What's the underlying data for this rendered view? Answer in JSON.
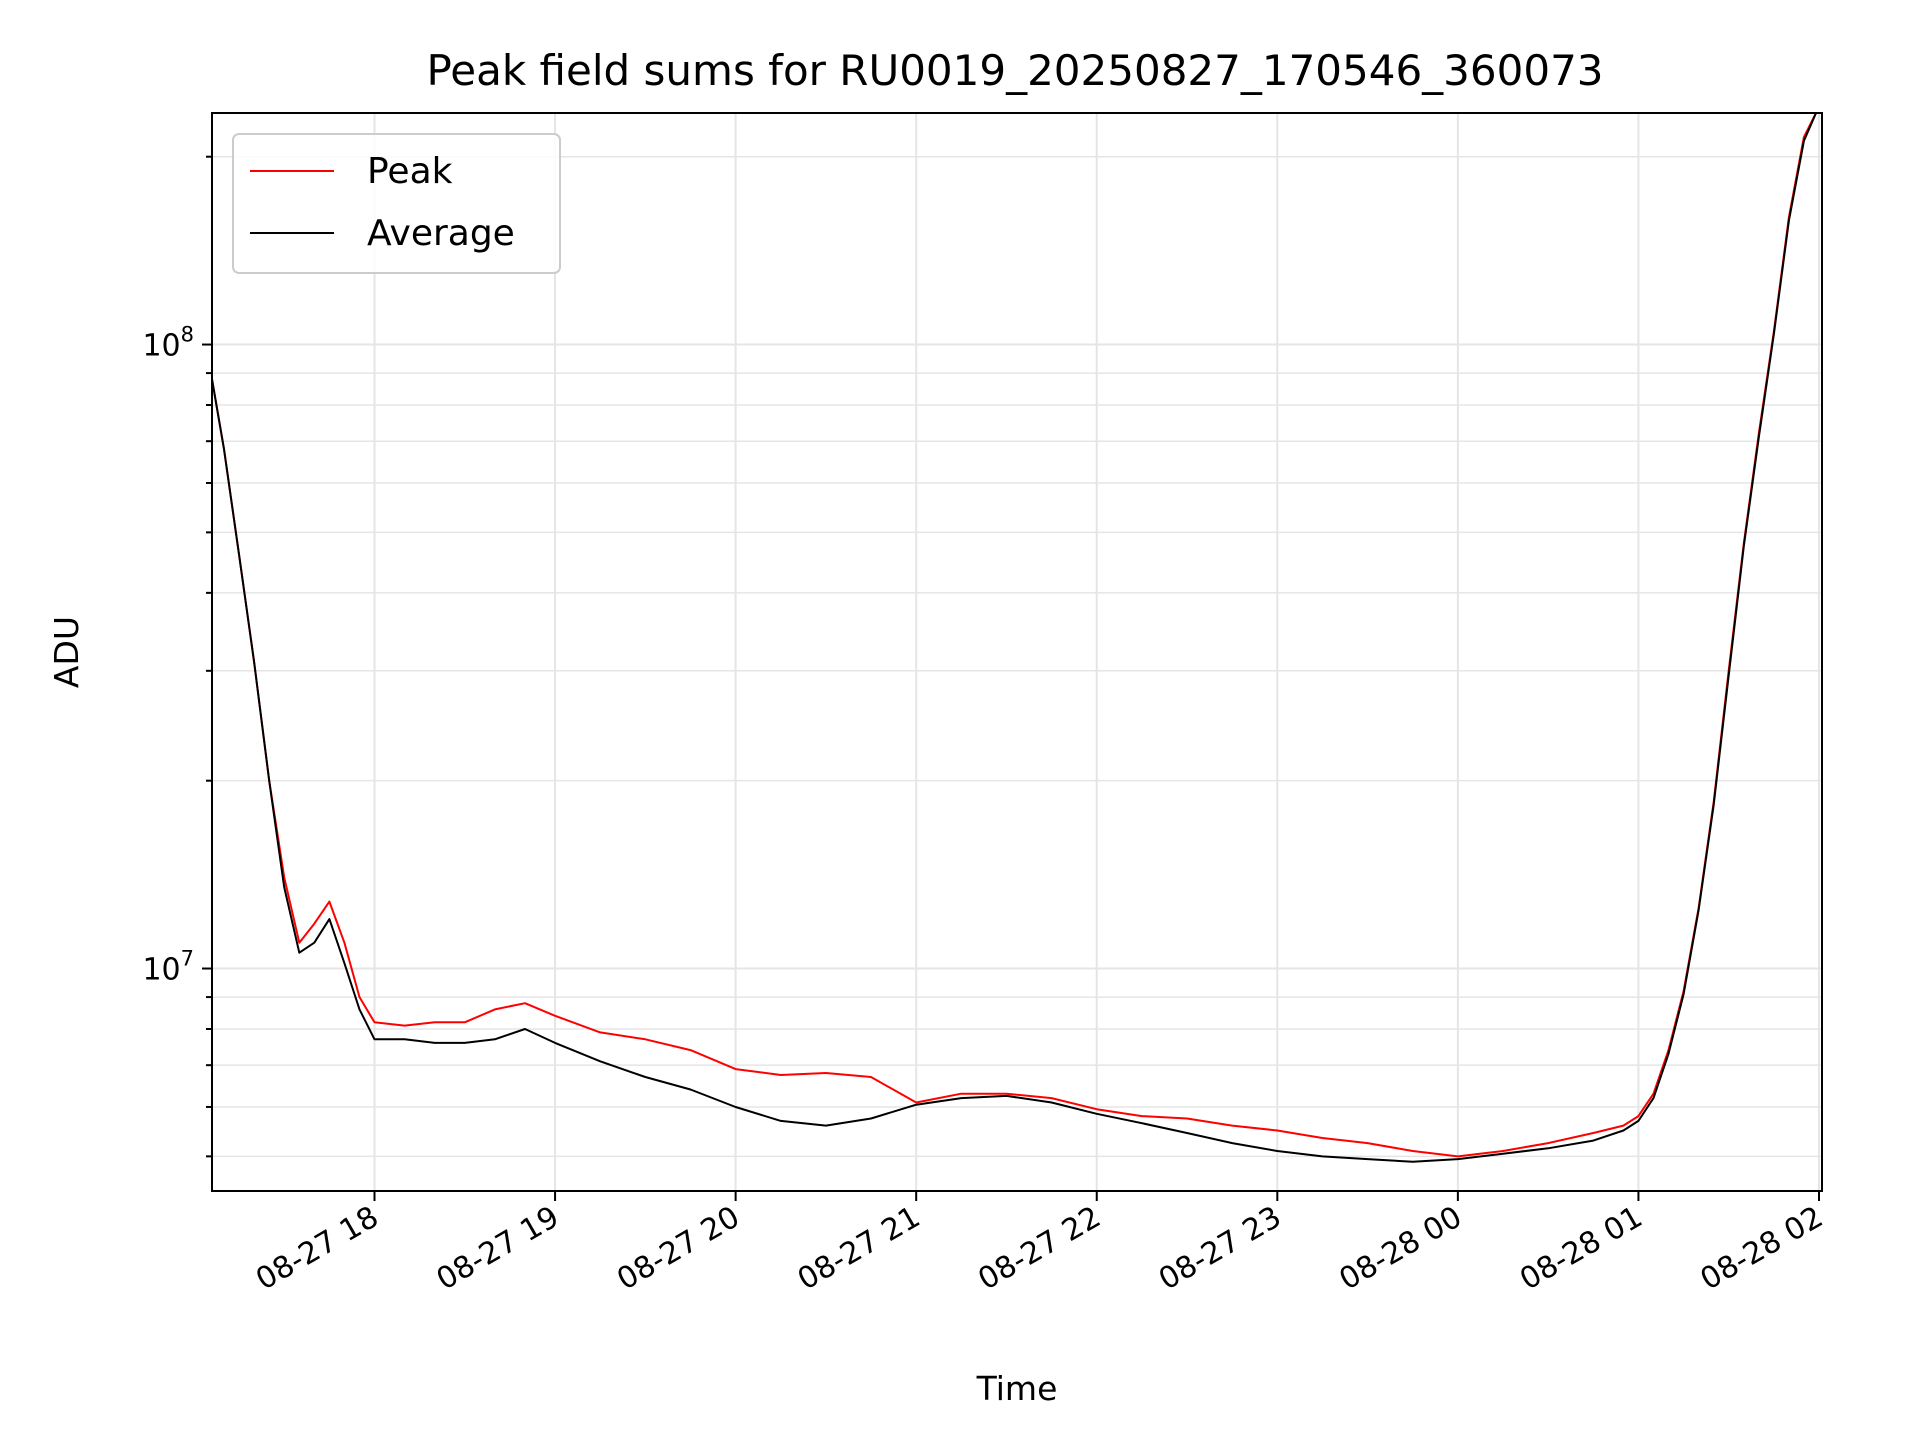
{
  "chart_data": {
    "type": "line",
    "title": "Peak field sums for RU0019_20250827_170546_360073",
    "xlabel": "Time",
    "ylabel": "ADU",
    "yscale": "log",
    "grid": true,
    "legend_position": "top-left",
    "xlim": [
      "2025-08-27 17:06",
      "2025-08-28 02:01"
    ],
    "ylim": [
      4400000,
      235000000
    ],
    "x_ticks": [
      "08-27 18",
      "08-27 19",
      "08-27 20",
      "08-27 21",
      "08-27 22",
      "08-27 23",
      "08-28 00",
      "08-28 01",
      "08-28 02"
    ],
    "x_tick_times": [
      "2025-08-27 18:00",
      "2025-08-27 19:00",
      "2025-08-27 20:00",
      "2025-08-27 21:00",
      "2025-08-27 22:00",
      "2025-08-27 23:00",
      "2025-08-28 00:00",
      "2025-08-28 01:00",
      "2025-08-28 02:00"
    ],
    "y_ticks": [
      {
        "value": 10000000,
        "base": "10",
        "exp": "7"
      },
      {
        "value": 100000000,
        "base": "10",
        "exp": "8"
      }
    ],
    "series": [
      {
        "name": "Peak",
        "color": "#ff0000",
        "x": [
          "2025-08-27 17:06",
          "2025-08-27 17:10",
          "2025-08-27 17:15",
          "2025-08-27 17:20",
          "2025-08-27 17:25",
          "2025-08-27 17:30",
          "2025-08-27 17:35",
          "2025-08-27 17:40",
          "2025-08-27 17:45",
          "2025-08-27 17:50",
          "2025-08-27 17:55",
          "2025-08-27 18:00",
          "2025-08-27 18:10",
          "2025-08-27 18:20",
          "2025-08-27 18:30",
          "2025-08-27 18:40",
          "2025-08-27 18:50",
          "2025-08-27 19:00",
          "2025-08-27 19:15",
          "2025-08-27 19:30",
          "2025-08-27 19:45",
          "2025-08-27 20:00",
          "2025-08-27 20:15",
          "2025-08-27 20:30",
          "2025-08-27 20:45",
          "2025-08-27 21:00",
          "2025-08-27 21:15",
          "2025-08-27 21:30",
          "2025-08-27 21:45",
          "2025-08-27 22:00",
          "2025-08-27 22:15",
          "2025-08-27 22:30",
          "2025-08-27 22:45",
          "2025-08-27 23:00",
          "2025-08-27 23:15",
          "2025-08-27 23:30",
          "2025-08-27 23:45",
          "2025-08-28 00:00",
          "2025-08-28 00:15",
          "2025-08-28 00:30",
          "2025-08-28 00:45",
          "2025-08-28 00:55",
          "2025-08-28 01:00",
          "2025-08-28 01:05",
          "2025-08-28 01:10",
          "2025-08-28 01:15",
          "2025-08-28 01:20",
          "2025-08-28 01:25",
          "2025-08-28 01:30",
          "2025-08-28 01:35",
          "2025-08-28 01:40",
          "2025-08-28 01:45",
          "2025-08-28 01:50",
          "2025-08-28 01:55",
          "2025-08-28 01:59"
        ],
        "values": [
          88000000,
          68000000,
          46000000,
          31000000,
          20000000,
          14000000,
          11000000,
          11800000,
          12800000,
          11000000,
          9000000,
          8200000,
          8100000,
          8200000,
          8200000,
          8600000,
          8800000,
          8400000,
          7900000,
          7700000,
          7400000,
          6900000,
          6750000,
          6800000,
          6700000,
          6100000,
          6300000,
          6300000,
          6200000,
          5950000,
          5800000,
          5750000,
          5600000,
          5500000,
          5350000,
          5250000,
          5100000,
          5000000,
          5100000,
          5250000,
          5450000,
          5600000,
          5800000,
          6300000,
          7400000,
          9200000,
          12500000,
          18500000,
          30000000,
          48000000,
          72000000,
          105000000,
          160000000,
          215000000,
          235000000
        ]
      },
      {
        "name": "Average",
        "color": "#000000",
        "x": [
          "2025-08-27 17:06",
          "2025-08-27 17:10",
          "2025-08-27 17:15",
          "2025-08-27 17:20",
          "2025-08-27 17:25",
          "2025-08-27 17:30",
          "2025-08-27 17:35",
          "2025-08-27 17:40",
          "2025-08-27 17:45",
          "2025-08-27 17:50",
          "2025-08-27 17:55",
          "2025-08-27 18:00",
          "2025-08-27 18:10",
          "2025-08-27 18:20",
          "2025-08-27 18:30",
          "2025-08-27 18:40",
          "2025-08-27 18:50",
          "2025-08-27 19:00",
          "2025-08-27 19:15",
          "2025-08-27 19:30",
          "2025-08-27 19:45",
          "2025-08-27 20:00",
          "2025-08-27 20:15",
          "2025-08-27 20:30",
          "2025-08-27 20:45",
          "2025-08-27 21:00",
          "2025-08-27 21:15",
          "2025-08-27 21:30",
          "2025-08-27 21:45",
          "2025-08-27 22:00",
          "2025-08-27 22:15",
          "2025-08-27 22:30",
          "2025-08-27 22:45",
          "2025-08-27 23:00",
          "2025-08-27 23:15",
          "2025-08-27 23:30",
          "2025-08-27 23:45",
          "2025-08-28 00:00",
          "2025-08-28 00:15",
          "2025-08-28 00:30",
          "2025-08-28 00:45",
          "2025-08-28 00:55",
          "2025-08-28 01:00",
          "2025-08-28 01:05",
          "2025-08-28 01:10",
          "2025-08-28 01:15",
          "2025-08-28 01:20",
          "2025-08-28 01:25",
          "2025-08-28 01:30",
          "2025-08-28 01:35",
          "2025-08-28 01:40",
          "2025-08-28 01:45",
          "2025-08-28 01:50",
          "2025-08-28 01:55",
          "2025-08-28 01:59"
        ],
        "values": [
          88000000,
          68000000,
          46000000,
          31000000,
          20000000,
          13500000,
          10600000,
          11000000,
          12000000,
          10200000,
          8600000,
          7700000,
          7700000,
          7600000,
          7600000,
          7700000,
          8000000,
          7600000,
          7100000,
          6700000,
          6400000,
          6000000,
          5700000,
          5600000,
          5750000,
          6050000,
          6200000,
          6250000,
          6100000,
          5850000,
          5650000,
          5450000,
          5250000,
          5100000,
          5000000,
          4950000,
          4900000,
          4950000,
          5050000,
          5150000,
          5300000,
          5500000,
          5700000,
          6200000,
          7300000,
          9100000,
          12400000,
          18300000,
          29500000,
          47500000,
          71000000,
          104000000,
          158000000,
          212000000,
          235000000
        ]
      }
    ]
  }
}
